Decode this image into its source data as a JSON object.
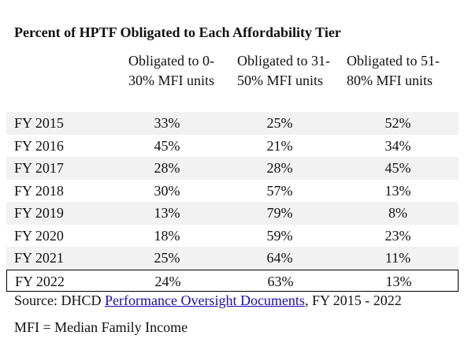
{
  "title": "Percent of HPTF Obligated to Each Affordability Tier",
  "table": {
    "columns": [
      "Obligated to 0-30% MFI units",
      "Obligated to 31-50% MFI units",
      "Obligated to 51-80% MFI units"
    ],
    "rows": [
      [
        "FY 2015",
        "33%",
        "25%",
        "52%"
      ],
      [
        "FY 2016",
        "45%",
        "21%",
        "34%"
      ],
      [
        "FY 2017",
        "28%",
        "28%",
        "45%"
      ],
      [
        "FY 2018",
        "30%",
        "57%",
        "13%"
      ],
      [
        "FY 2019",
        "13%",
        "79%",
        "8%"
      ],
      [
        "FY 2020",
        "18%",
        "59%",
        "23%"
      ],
      [
        "FY 2021",
        "25%",
        "64%",
        "11%"
      ],
      [
        "FY 2022",
        "24%",
        "63%",
        "13%"
      ]
    ]
  },
  "source": {
    "prefix": "Source: DHCD",
    "link": "Performance Oversight Documents",
    "suffix": ", FY 2015 - 2022"
  },
  "note": "MFI = Median Family Income"
}
